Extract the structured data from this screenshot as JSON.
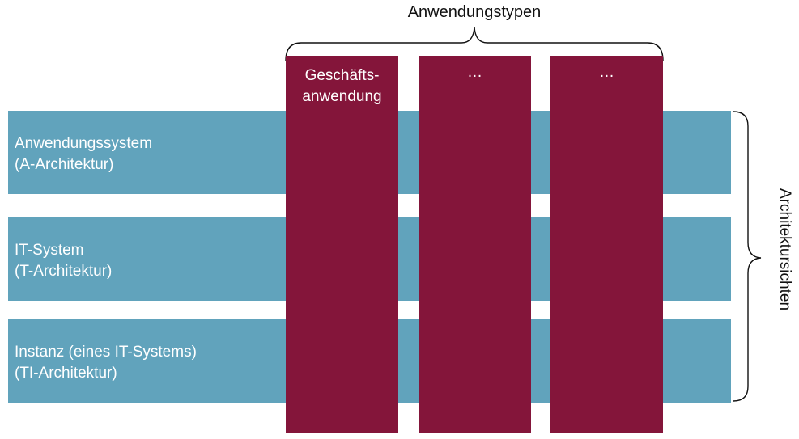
{
  "header": {
    "columns_title": "Anwendungstypen"
  },
  "side": {
    "rows_title": "Architektursichten"
  },
  "rows": [
    {
      "line1": "Anwendungssystem",
      "line2": "(A-Architektur)"
    },
    {
      "line1": "IT-System",
      "line2": "(T-Architektur)"
    },
    {
      "line1": "Instanz (eines IT-Systems)",
      "line2": "(TI-Architektur)"
    }
  ],
  "columns": [
    {
      "line1": "Geschäfts-",
      "line2": "anwendung"
    },
    {
      "line1": "…",
      "line2": ""
    },
    {
      "line1": "…",
      "line2": ""
    }
  ],
  "colors": {
    "row_fill": "#61a3bc",
    "column_fill": "#84153a",
    "label_text": "#ffffff",
    "brace": "#111111"
  }
}
